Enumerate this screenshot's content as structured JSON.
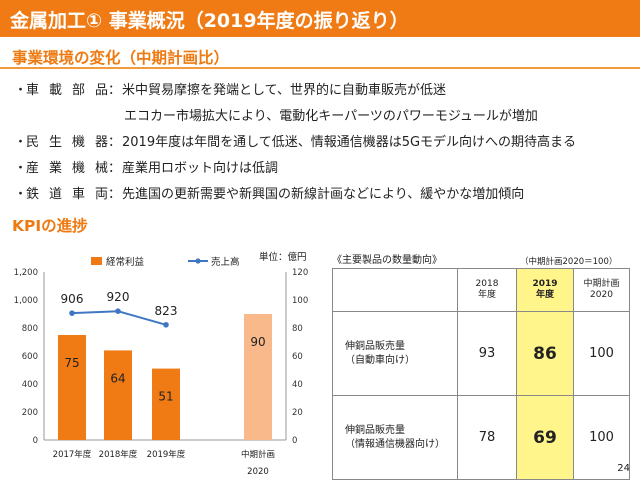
{
  "title": "金属加工① 事業概況（2019年度の振り返り）",
  "sections": {
    "env": "事業環境の変化（中期計画比）",
    "kpi": "KPIの進捗"
  },
  "bullets": [
    {
      "dot": "・",
      "head": "車載部品",
      "colon": "：",
      "text": "米中貿易摩擦を発端として、世界的に自動車販売が低迷"
    },
    {
      "dot": "",
      "head": "",
      "colon": "",
      "text": "エコカー市場拡大により、電動化キーパーツのパワーモジュールが増加"
    },
    {
      "dot": "・",
      "head": "民生機器",
      "colon": "：",
      "text": "2019年度は年間を通して低迷、情報通信機器は5Gモデル向けへの期待高まる"
    },
    {
      "dot": "・",
      "head": "産業機械",
      "colon": "：",
      "text": "産業用ロボット向けは低調"
    },
    {
      "dot": "・",
      "head": "鉄道車両",
      "colon": "：",
      "text": "先進国の更新需要や新興国の新線計画などにより、緩やかな増加傾向"
    }
  ],
  "chart_data": {
    "type": "bar",
    "categories": [
      "2017年度",
      "2018年度",
      "2019年度",
      "中期計画"
    ],
    "category_sublabels": [
      "",
      "",
      "",
      "2020"
    ],
    "unit_label": "単位：億円",
    "series": [
      {
        "name": "経常利益",
        "kind": "bar",
        "axis": "right",
        "values": [
          75,
          64,
          51,
          90
        ],
        "colors": [
          "#f07a14",
          "#f07a14",
          "#f07a14",
          "#f9b98a"
        ]
      },
      {
        "name": "売上高",
        "kind": "line",
        "axis": "left",
        "values": [
          906,
          920,
          823,
          null
        ],
        "color": "#3f77c4"
      }
    ],
    "left_axis": {
      "ticks": [
        "0",
        "200",
        "400",
        "600",
        "800",
        "1,000",
        "1,200"
      ],
      "ylim": [
        0,
        1200
      ]
    },
    "right_axis": {
      "ticks": [
        "0",
        "20",
        "40",
        "60",
        "80",
        "100",
        "120"
      ],
      "ylim": [
        0,
        120
      ]
    },
    "grid": false,
    "legend_position": "top"
  },
  "table": {
    "title": "《主要製品の数量動向》",
    "note": "（中期計画2020＝100）",
    "headers": [
      {
        "top": "2018",
        "bottom": "年度"
      },
      {
        "top": "2019",
        "bottom": "年度"
      },
      {
        "top": "中期計画",
        "bottom": "2020"
      }
    ],
    "rows": [
      {
        "label1": "伸銅品販売量",
        "label2": "（自動車向け）",
        "v2018": "93",
        "v2019": "86",
        "plan": "100"
      },
      {
        "label1": "伸銅品販売量",
        "label2": "（情報通信機器向け）",
        "v2018": "78",
        "v2019": "69",
        "plan": "100"
      }
    ]
  },
  "page_number": "24",
  "colors": {
    "accent": "#f07a14",
    "bar_light": "#f9b98a",
    "line": "#3f77c4",
    "highlight": "#fff58a"
  }
}
